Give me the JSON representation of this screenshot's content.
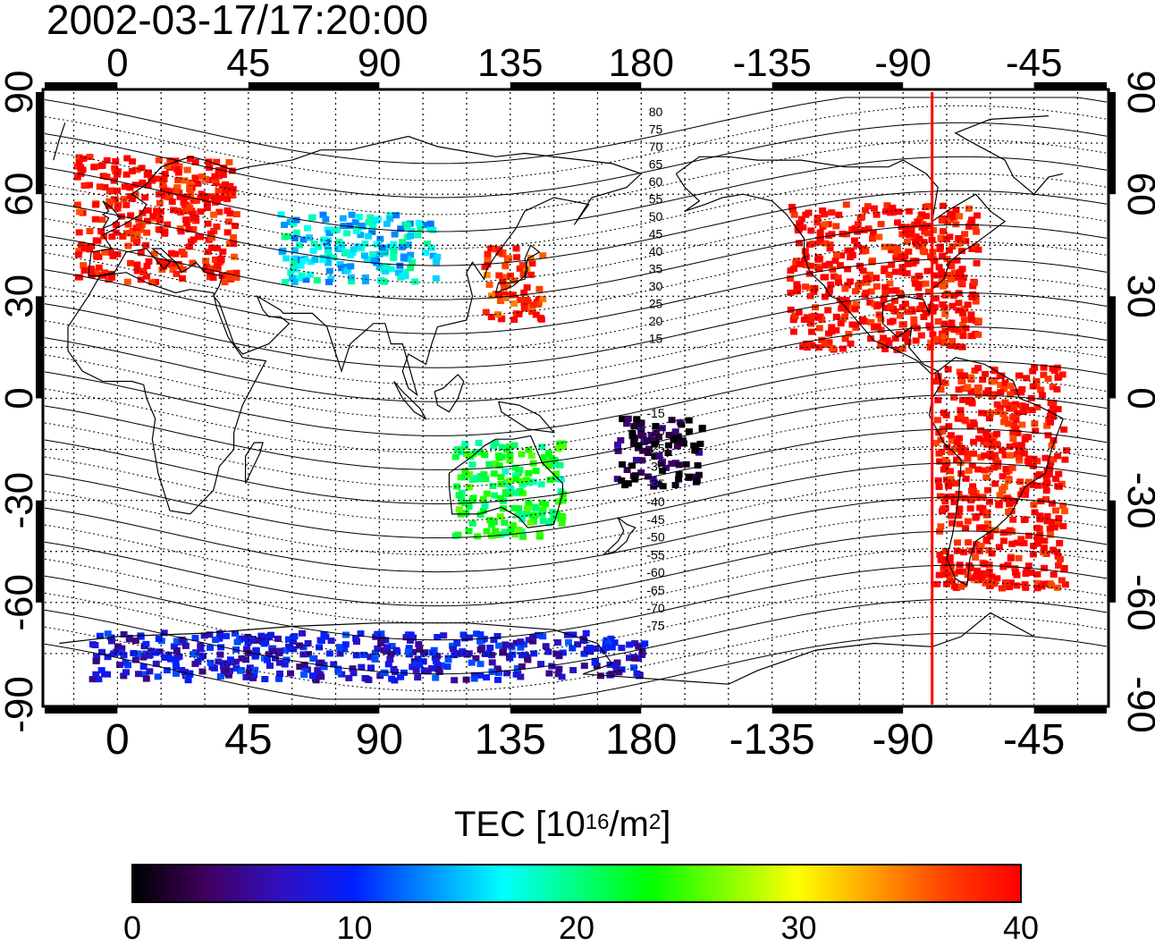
{
  "title": "2002-03-17/17:20:00",
  "axes": {
    "top_ticks": [
      "0",
      "45",
      "90",
      "135",
      "180",
      "-135",
      "-90",
      "-45"
    ],
    "bottom_ticks": [
      "0",
      "45",
      "90",
      "135",
      "180",
      "-135",
      "-90",
      "-45"
    ],
    "left_ticks": [
      "90",
      "60",
      "30",
      "0",
      "-30",
      "-60",
      "-90"
    ],
    "right_ticks": [
      "90",
      "60",
      "30",
      "0",
      "-30",
      "-60",
      "-90"
    ],
    "lon_tick_values": [
      0,
      45,
      90,
      135,
      180,
      225,
      270,
      315
    ],
    "lat_tick_values": [
      90,
      60,
      30,
      0,
      -30,
      -60,
      -90
    ],
    "lon_range": [
      -25,
      340
    ],
    "lat_range": [
      -90,
      90
    ],
    "grid": "dotted 15 degree"
  },
  "contour_labels": {
    "north": [
      "80",
      "75",
      "70",
      "65",
      "60",
      "55",
      "50",
      "45",
      "40",
      "35",
      "30",
      "25",
      "20",
      "15"
    ],
    "south": [
      "-15",
      "-20",
      "-25",
      "-30",
      "-35",
      "-40",
      "-45",
      "-50",
      "-55",
      "-60",
      "-65",
      "-70",
      "-75"
    ]
  },
  "colorbar": {
    "title_main": "TEC  [10",
    "title_exp1": "16",
    "title_mid": "/m",
    "title_exp2": "2",
    "title_end": "]",
    "ticks": [
      "0",
      "10",
      "20",
      "30",
      "40"
    ],
    "tick_values": [
      0,
      10,
      20,
      30,
      40
    ],
    "range": [
      0,
      40
    ],
    "colormap": [
      "#000000",
      "#400060",
      "#3010c0",
      "#0020ff",
      "#0090ff",
      "#00ffff",
      "#00ff80",
      "#00ff00",
      "#80ff00",
      "#ffff00",
      "#ffa000",
      "#ff4000",
      "#ff0000"
    ]
  },
  "sun_marker": {
    "longitude": -80,
    "color": "#ff0000"
  },
  "tec_regions": [
    {
      "name": "Europe",
      "lon": [
        -15,
        40
      ],
      "lat": [
        35,
        72
      ],
      "tec": 40
    },
    {
      "name": "North America",
      "lon": [
        -130,
        -65
      ],
      "lat": [
        15,
        58
      ],
      "tec": 40
    },
    {
      "name": "South America",
      "lon": [
        -80,
        -35
      ],
      "lat": [
        -55,
        10
      ],
      "tec": 40
    },
    {
      "name": "Japan",
      "lon": [
        125,
        145
      ],
      "lat": [
        24,
        45
      ],
      "tec": 38
    },
    {
      "name": "Australia",
      "lon": [
        115,
        152
      ],
      "lat": [
        -40,
        -12
      ],
      "tec": 22
    },
    {
      "name": "Antarctic coast",
      "lon": [
        -10,
        180
      ],
      "lat": [
        -82,
        -68
      ],
      "tec": 8
    },
    {
      "name": "Central Asia",
      "lon": [
        55,
        110
      ],
      "lat": [
        35,
        55
      ],
      "tec": 16
    },
    {
      "name": "Pacific",
      "lon": [
        170,
        200
      ],
      "lat": [
        -25,
        -5
      ],
      "tec": 2
    }
  ]
}
